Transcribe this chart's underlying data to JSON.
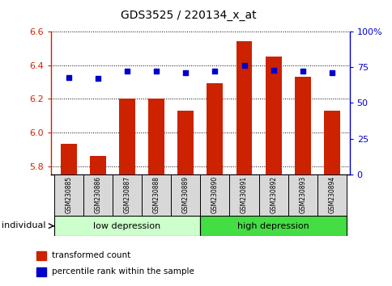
{
  "title": "GDS3525 / 220134_x_at",
  "samples": [
    "GSM230885",
    "GSM230886",
    "GSM230887",
    "GSM230888",
    "GSM230889",
    "GSM230890",
    "GSM230891",
    "GSM230892",
    "GSM230893",
    "GSM230894"
  ],
  "bar_values": [
    5.93,
    5.86,
    6.2,
    6.2,
    6.13,
    6.29,
    6.54,
    6.45,
    6.33,
    6.13
  ],
  "percentile_values": [
    68,
    67,
    72,
    72,
    71,
    72,
    76,
    73,
    72,
    71
  ],
  "ylim_left": [
    5.75,
    6.6
  ],
  "ylim_right": [
    0,
    100
  ],
  "yticks_left": [
    5.8,
    6.0,
    6.2,
    6.4,
    6.6
  ],
  "yticks_right": [
    0,
    25,
    50,
    75,
    100
  ],
  "ytick_labels_right": [
    "0",
    "25",
    "50",
    "75",
    "100%"
  ],
  "bar_color": "#cc2200",
  "dot_color": "#0000cc",
  "group1_label": "low depression",
  "group2_label": "high depression",
  "group1_color": "#ccffcc",
  "group2_color": "#44dd44",
  "group1_indices": [
    0,
    1,
    2,
    3,
    4
  ],
  "group2_indices": [
    5,
    6,
    7,
    8,
    9
  ],
  "legend_bar_label": "transformed count",
  "legend_dot_label": "percentile rank within the sample",
  "individual_label": "individual",
  "bar_width": 0.55,
  "base_value": 5.75
}
